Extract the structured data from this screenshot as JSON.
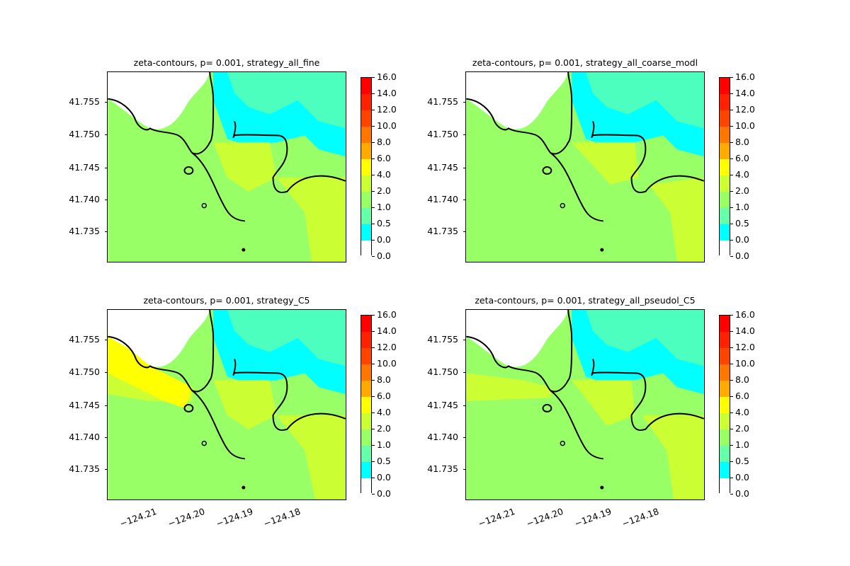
{
  "panels": [
    {
      "title": "zeta-contours, p= 0.001, strategy_all_fine"
    },
    {
      "title": "zeta-contours, p= 0.001, strategy_all_coarse_modl"
    },
    {
      "title": "zeta-contours, p= 0.001, strategy_C5"
    },
    {
      "title": "zeta-contours, p= 0.001, strategy_all_pseudol_C5"
    }
  ],
  "yticks": [
    "41.755",
    "41.750",
    "41.745",
    "41.740",
    "41.735"
  ],
  "xticks": [
    "−124.21",
    "−124.20",
    "−124.19",
    "−124.18"
  ],
  "colorbar": {
    "labels": [
      "16.0",
      "14.0",
      "12.0",
      "10.0",
      "8.0",
      "6.0",
      "4.0",
      "2.0",
      "1.0",
      "0.5",
      "0.0",
      "0.0"
    ],
    "colors": [
      "#ff0000",
      "#ff2200",
      "#ff4400",
      "#ff7700",
      "#ffaa00",
      "#ffff00",
      "#ccff33",
      "#99ff66",
      "#66ffaa",
      "#00ffff",
      "#ffffff"
    ]
  },
  "legend_colors": {
    "white": "#ffffff",
    "cyan": "#00ffff",
    "aqua": "#66ffaa",
    "green": "#99ff66",
    "lime": "#ccff33",
    "yellow": "#ffff00",
    "coast": "#000000"
  }
}
